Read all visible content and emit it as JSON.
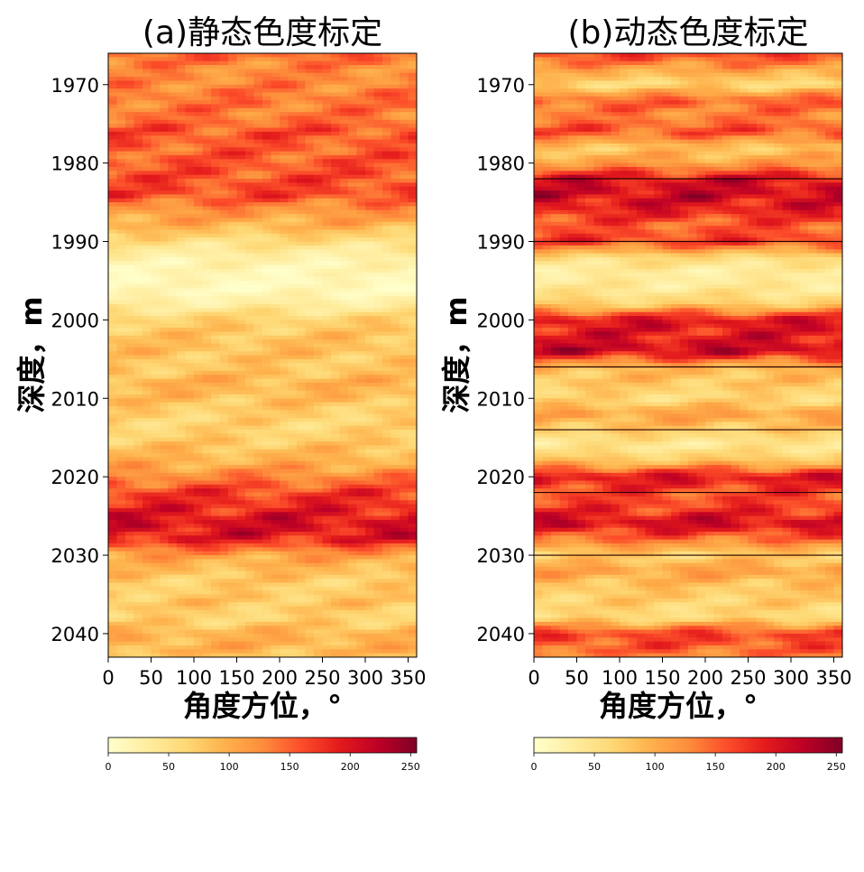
{
  "chart_data": [
    {
      "type": "heatmap",
      "title": "(a)静态色度标定",
      "xlabel": "角度方位，°",
      "ylabel": "深度，m",
      "xlim": [
        0,
        360
      ],
      "ylim": [
        1966,
        2043
      ],
      "y_inverted": true,
      "xticks": [
        0,
        50,
        100,
        150,
        200,
        250,
        300,
        350
      ],
      "yticks": [
        1970,
        1980,
        1990,
        2000,
        2010,
        2020,
        2030,
        2040
      ],
      "colormap": "YlOrRd",
      "colorbar": {
        "ticks": [
          0,
          50,
          100,
          150,
          200,
          250
        ],
        "range": [
          0,
          255
        ],
        "orientation": "horizontal"
      },
      "depth_profile": {
        "depth": [
          1966,
          1968,
          1970,
          1972,
          1974,
          1976,
          1978,
          1980,
          1982,
          1984,
          1986,
          1988,
          1990,
          1992,
          1994,
          1996,
          1998,
          2000,
          2002,
          2004,
          2006,
          2008,
          2010,
          2012,
          2014,
          2016,
          2018,
          2020,
          2022,
          2024,
          2026,
          2028,
          2030,
          2032,
          2034,
          2036,
          2038,
          2040,
          2042,
          2043
        ],
        "mean_value": [
          150,
          125,
          130,
          140,
          135,
          160,
          150,
          155,
          160,
          165,
          120,
          95,
          55,
          25,
          15,
          10,
          30,
          70,
          80,
          85,
          75,
          95,
          85,
          70,
          65,
          80,
          95,
          130,
          170,
          185,
          205,
          190,
          110,
          85,
          70,
          80,
          65,
          95,
          95,
          80
        ]
      }
    },
    {
      "type": "heatmap",
      "title": "(b)动态色度标定",
      "xlabel": "角度方位，°",
      "ylabel": "深度，m",
      "xlim": [
        0,
        360
      ],
      "ylim": [
        1966,
        2043
      ],
      "y_inverted": true,
      "xticks": [
        0,
        50,
        100,
        150,
        200,
        250,
        300,
        350
      ],
      "yticks": [
        1970,
        1980,
        1990,
        2000,
        2010,
        2020,
        2030,
        2040
      ],
      "colormap": "YlOrRd",
      "colorbar": {
        "ticks": [
          0,
          50,
          100,
          150,
          200,
          250
        ],
        "range": [
          0,
          255
        ],
        "orientation": "horizontal"
      },
      "segment_boundaries": [
        1982,
        1990,
        2006,
        2014,
        2022,
        2030
      ],
      "depth_profile": {
        "depth": [
          1966,
          1968,
          1970,
          1972,
          1974,
          1976,
          1978,
          1980,
          1982,
          1984,
          1986,
          1988,
          1990,
          1992,
          1994,
          1996,
          1998,
          2000,
          2002,
          2004,
          2006,
          2008,
          2010,
          2012,
          2014,
          2016,
          2018,
          2020,
          2022,
          2024,
          2026,
          2028,
          2030,
          2032,
          2034,
          2036,
          2038,
          2040,
          2042,
          2043
        ],
        "mean_value": [
          170,
          110,
          60,
          150,
          130,
          160,
          80,
          110,
          200,
          210,
          190,
          150,
          170,
          60,
          30,
          40,
          70,
          200,
          190,
          215,
          90,
          80,
          60,
          110,
          75,
          40,
          80,
          200,
          160,
          170,
          210,
          140,
          70,
          110,
          80,
          70,
          60,
          170,
          150,
          130
        ]
      }
    }
  ]
}
